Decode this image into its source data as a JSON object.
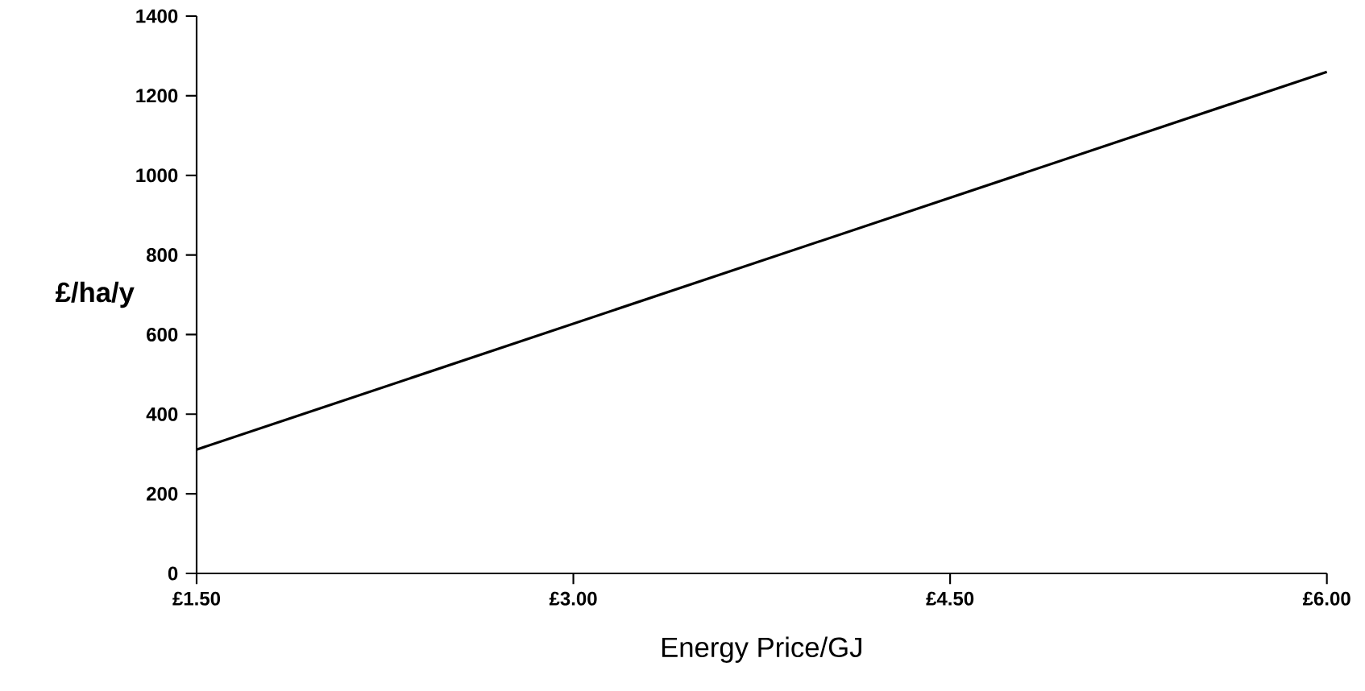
{
  "chart_data": {
    "type": "line",
    "xlabel": "Energy Price/GJ",
    "ylabel": "£/ha/y",
    "x": [
      1.5,
      6.0
    ],
    "series": [
      {
        "color": "#000000",
        "values": [
          311,
          1260
        ]
      }
    ],
    "xlim": [
      1.5,
      6.0
    ],
    "xticks": [
      {
        "value": 1.5,
        "label": "£1.50"
      },
      {
        "value": 3.0,
        "label": "£3.00"
      },
      {
        "value": 4.5,
        "label": "£4.50"
      },
      {
        "value": 6.0,
        "label": "£6.00"
      }
    ],
    "ylim": [
      0,
      1400
    ],
    "yticks": [
      0,
      200,
      400,
      600,
      800,
      1000,
      1200,
      1400
    ],
    "grid": false,
    "marker": "none",
    "line_style": "solid"
  }
}
